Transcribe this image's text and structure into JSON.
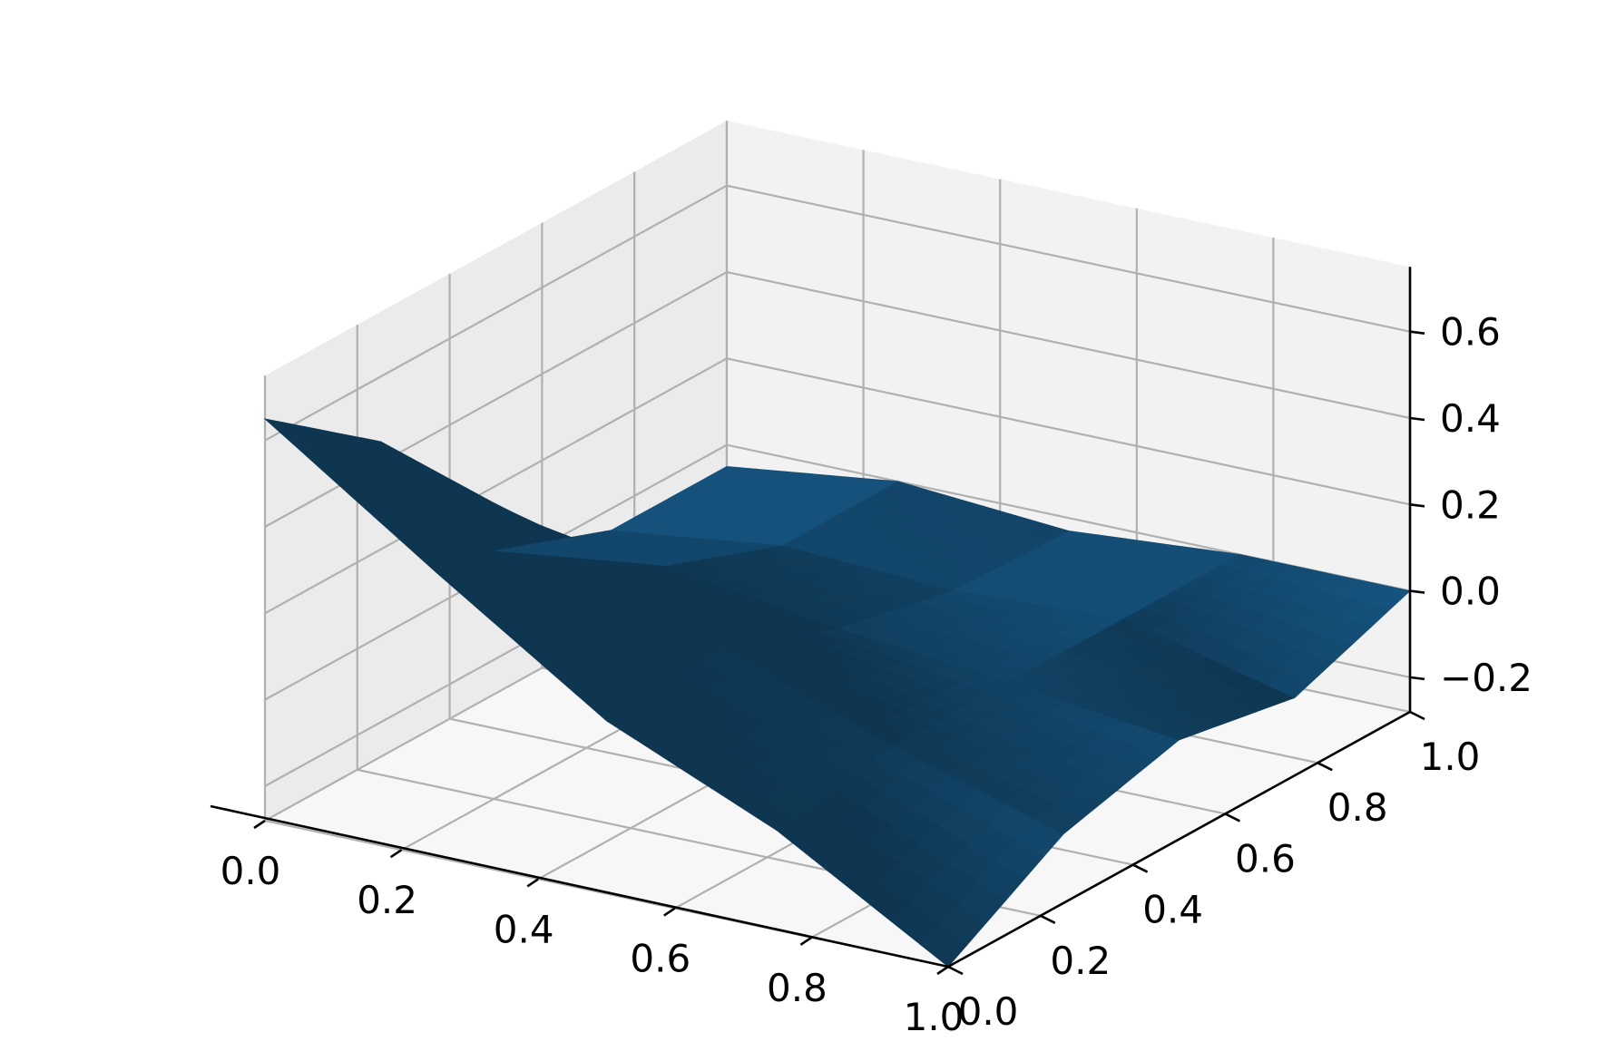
{
  "chart_data": {
    "type": "surface",
    "title": "",
    "xlabel": "",
    "ylabel": "",
    "zlabel": "",
    "xlim": [
      0,
      1
    ],
    "ylim": [
      0,
      1
    ],
    "zlim": [
      -0.28,
      0.75
    ],
    "grid": true,
    "x_ticks": [
      "0.0",
      "0.2",
      "0.4",
      "0.6",
      "0.8",
      "1.0"
    ],
    "y_ticks": [
      "0.0",
      "0.2",
      "0.4",
      "0.6",
      "0.8",
      "1.0"
    ],
    "z_ticks": [
      "−0.2",
      "0.0",
      "0.2",
      "0.4",
      "0.6"
    ],
    "x_tick_values": [
      0,
      0.2,
      0.4,
      0.6,
      0.8,
      1.0
    ],
    "y_tick_values": [
      0,
      0.2,
      0.4,
      0.6,
      0.8,
      1.0
    ],
    "z_tick_values": [
      -0.2,
      0,
      0.2,
      0.4,
      0.6
    ],
    "surface_color": "#1f77b4",
    "pane_colors": {
      "left": "#ebebeb",
      "back": "#f2f2f2",
      "floor": "#f7f7f7"
    },
    "surface_grid": {
      "x": [
        0.0,
        0.25,
        0.5,
        0.75,
        1.0
      ],
      "y": [
        0.0,
        0.25,
        0.5,
        0.75,
        1.0
      ],
      "z": [
        [
          0.65,
          0.45,
          0.05,
          -0.05,
          -0.05
        ],
        [
          0.38,
          0.32,
          0.1,
          0.0,
          0.0
        ],
        [
          0.12,
          0.14,
          0.04,
          -0.02,
          -0.03
        ],
        [
          -0.05,
          0.0,
          0.0,
          0.0,
          0.0
        ],
        [
          -0.28,
          -0.12,
          -0.05,
          -0.1,
          0.0
        ]
      ]
    }
  }
}
